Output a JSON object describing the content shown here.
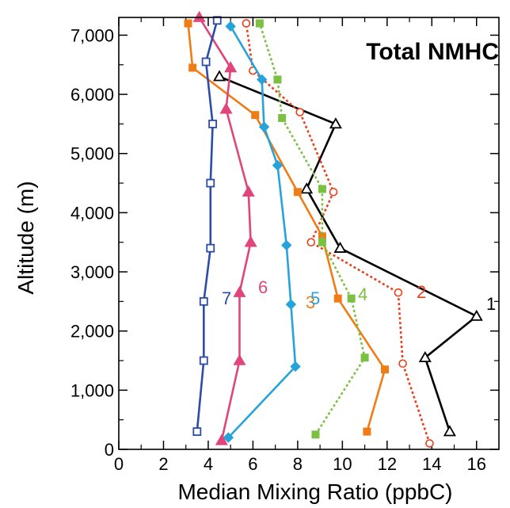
{
  "chart_data": {
    "type": "line",
    "title": "Total NMHC",
    "xlabel": "Median Mixing Ratio (ppbC)",
    "ylabel": "Altitude (m)",
    "xlim": [
      0,
      17
    ],
    "ylim": [
      0,
      7300
    ],
    "x_ticks": [
      0,
      2,
      4,
      6,
      8,
      10,
      12,
      14,
      16
    ],
    "x_tick_labels": [
      "0",
      "2",
      "4",
      "6",
      "8",
      "10",
      "12",
      "14",
      "16"
    ],
    "y_ticks": [
      0,
      1000,
      2000,
      3000,
      4000,
      5000,
      6000,
      7000
    ],
    "y_tick_labels": [
      "0",
      "1,000",
      "2,000",
      "3,000",
      "4,000",
      "5,000",
      "6,000",
      "7,000"
    ],
    "grid": false,
    "series": [
      {
        "label": "1",
        "color": "#000000",
        "marker": "triangle-open",
        "dash": "solid",
        "points": [
          [
            14.8,
            300
          ],
          [
            13.7,
            1550
          ],
          [
            16.0,
            2250
          ],
          [
            9.9,
            3400
          ],
          [
            8.4,
            4400
          ],
          [
            9.7,
            5500
          ],
          [
            4.5,
            6300
          ]
        ]
      },
      {
        "label": "2",
        "color": "#e8401c",
        "marker": "circle-open",
        "dash": "dotted",
        "points": [
          [
            13.9,
            100
          ],
          [
            12.7,
            1450
          ],
          [
            12.5,
            2650
          ],
          [
            8.6,
            3500
          ],
          [
            9.6,
            4350
          ],
          [
            8.1,
            5700
          ],
          [
            6.0,
            6400
          ],
          [
            5.7,
            7200
          ]
        ]
      },
      {
        "label": "3",
        "color": "#f07c16",
        "marker": "square",
        "dash": "solid",
        "points": [
          [
            11.1,
            300
          ],
          [
            11.9,
            1350
          ],
          [
            9.8,
            2550
          ],
          [
            9.1,
            3600
          ],
          [
            8.0,
            4350
          ],
          [
            6.1,
            5650
          ],
          [
            3.3,
            6450
          ],
          [
            3.1,
            7200
          ]
        ]
      },
      {
        "label": "4",
        "color": "#7bc043",
        "marker": "square",
        "dash": "dotted",
        "points": [
          [
            8.8,
            250
          ],
          [
            11.0,
            1550
          ],
          [
            10.4,
            2550
          ],
          [
            9.1,
            3500
          ],
          [
            9.1,
            4400
          ],
          [
            7.3,
            5600
          ],
          [
            7.1,
            6250
          ],
          [
            6.3,
            7200
          ]
        ]
      },
      {
        "label": "5",
        "color": "#27a3dc",
        "marker": "diamond",
        "dash": "solid",
        "points": [
          [
            4.9,
            200
          ],
          [
            7.9,
            1400
          ],
          [
            7.7,
            2450
          ],
          [
            7.5,
            3450
          ],
          [
            7.1,
            4800
          ],
          [
            6.5,
            5450
          ],
          [
            6.4,
            6250
          ],
          [
            5.0,
            7150
          ]
        ]
      },
      {
        "label": "6",
        "color": "#e0457b",
        "marker": "triangle",
        "dash": "solid",
        "points": [
          [
            4.6,
            150
          ],
          [
            5.4,
            1500
          ],
          [
            5.4,
            2650
          ],
          [
            5.9,
            3500
          ],
          [
            5.8,
            4350
          ],
          [
            4.8,
            5750
          ],
          [
            5.0,
            6450
          ],
          [
            3.6,
            7300
          ]
        ]
      },
      {
        "label": "7",
        "color": "#2b4ca8",
        "marker": "square-open",
        "dash": "solid",
        "points": [
          [
            3.5,
            300
          ],
          [
            3.8,
            1500
          ],
          [
            3.8,
            2500
          ],
          [
            4.1,
            3400
          ],
          [
            4.1,
            4500
          ],
          [
            4.2,
            5500
          ],
          [
            3.9,
            6550
          ],
          [
            4.4,
            7250
          ]
        ]
      }
    ]
  }
}
